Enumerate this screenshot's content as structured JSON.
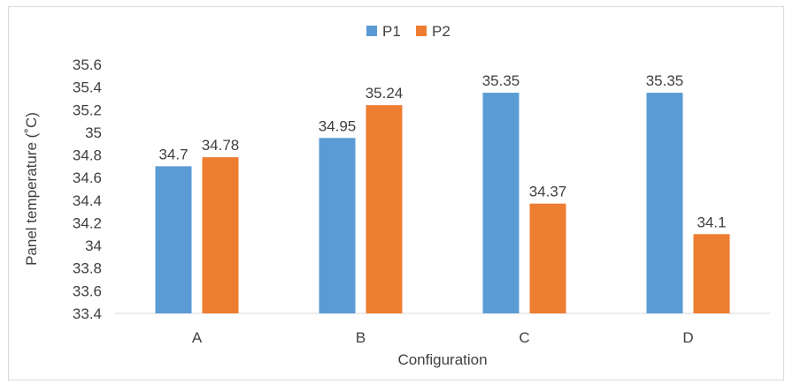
{
  "chart_data": {
    "type": "bar",
    "categories": [
      "A",
      "B",
      "C",
      "D"
    ],
    "series": [
      {
        "name": "P1",
        "values": [
          34.7,
          34.95,
          35.35,
          35.35
        ],
        "color": "#5b9bd5"
      },
      {
        "name": "P2",
        "values": [
          34.78,
          35.24,
          34.37,
          34.1
        ],
        "color": "#ed7d31"
      }
    ],
    "data_labels": [
      [
        "34.7",
        "34.95",
        "35.35",
        "35.35"
      ],
      [
        "34.78",
        "35.24",
        "34.37",
        "34.1"
      ]
    ],
    "xlabel": "Configuration",
    "ylabel": "Panel temperature (˚C)",
    "ylim": [
      33.4,
      35.6
    ],
    "yticks": [
      "33.4",
      "33.6",
      "33.8",
      "34",
      "34.2",
      "34.4",
      "34.6",
      "34.8",
      "35",
      "35.2",
      "35.4",
      "35.6"
    ],
    "legend_position": "top",
    "grid": false
  }
}
